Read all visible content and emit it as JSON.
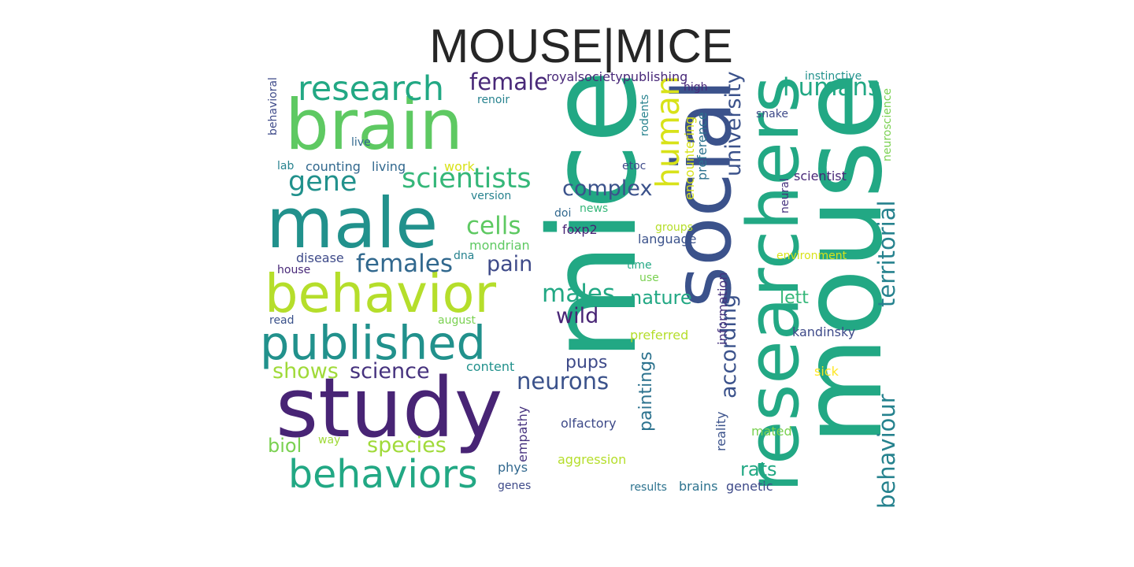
{
  "title": "MOUSE|MICE",
  "words": [
    {
      "text": "mice",
      "color": "#22a884"
    },
    {
      "text": "mouse",
      "color": "#22a884"
    },
    {
      "text": "social",
      "color": "#3b528b"
    },
    {
      "text": "male",
      "color": "#21918c"
    },
    {
      "text": "brain",
      "color": "#5ec962"
    },
    {
      "text": "behavior",
      "color": "#b5de2b"
    },
    {
      "text": "study",
      "color": "#482475"
    },
    {
      "text": "researchers",
      "color": "#22a884"
    },
    {
      "text": "published",
      "color": "#21918c"
    },
    {
      "text": "behaviors",
      "color": "#22a884"
    },
    {
      "text": "research",
      "color": "#22a884"
    },
    {
      "text": "human",
      "color": "#d8e219"
    },
    {
      "text": "humans",
      "color": "#22a884"
    },
    {
      "text": "university",
      "color": "#3b528b"
    },
    {
      "text": "behaviour",
      "color": "#26828e"
    },
    {
      "text": "territorial",
      "color": "#26828e"
    },
    {
      "text": "according",
      "color": "#3b528b"
    },
    {
      "text": "paintings",
      "color": "#2c728e"
    },
    {
      "text": "scientists",
      "color": "#35b779"
    },
    {
      "text": "female",
      "color": "#482878"
    },
    {
      "text": "gene",
      "color": "#21918c"
    },
    {
      "text": "cells",
      "color": "#5ec962"
    },
    {
      "text": "complex",
      "color": "#3b528b"
    },
    {
      "text": "females",
      "color": "#31688e"
    },
    {
      "text": "pain",
      "color": "#3e4a89"
    },
    {
      "text": "males",
      "color": "#22a884"
    },
    {
      "text": "nature",
      "color": "#22a884"
    },
    {
      "text": "wild",
      "color": "#482475"
    },
    {
      "text": "shows",
      "color": "#a0da39"
    },
    {
      "text": "science",
      "color": "#46327e"
    },
    {
      "text": "neurons",
      "color": "#3b528b"
    },
    {
      "text": "pups",
      "color": "#3e4a89"
    },
    {
      "text": "species",
      "color": "#a0da39"
    },
    {
      "text": "biol",
      "color": "#7ad151"
    },
    {
      "text": "rats",
      "color": "#22a884"
    },
    {
      "text": "lett",
      "color": "#35b779"
    },
    {
      "text": "information",
      "color": "#46327e"
    },
    {
      "text": "royalsocietypublishing",
      "color": "#482878"
    },
    {
      "text": "instinctive",
      "color": "#21918c"
    },
    {
      "text": "behavioral",
      "color": "#3e4a89"
    },
    {
      "text": "live",
      "color": "#31688e"
    },
    {
      "text": "lab",
      "color": "#26828e"
    },
    {
      "text": "counting",
      "color": "#31688e"
    },
    {
      "text": "living",
      "color": "#31688e"
    },
    {
      "text": "work",
      "color": "#d8e219"
    },
    {
      "text": "renoir",
      "color": "#26828e"
    },
    {
      "text": "high",
      "color": "#482878"
    },
    {
      "text": "rodents",
      "color": "#26828e"
    },
    {
      "text": "encountering",
      "color": "#d8e219"
    },
    {
      "text": "preference",
      "color": "#2c728e"
    },
    {
      "text": "snake",
      "color": "#3e4a89"
    },
    {
      "text": "neuroscience",
      "color": "#7ad151"
    },
    {
      "text": "etoc",
      "color": "#3e4a89"
    },
    {
      "text": "scientist",
      "color": "#482878"
    },
    {
      "text": "version",
      "color": "#26828e"
    },
    {
      "text": "doi",
      "color": "#31688e"
    },
    {
      "text": "news",
      "color": "#35b779"
    },
    {
      "text": "foxp2",
      "color": "#482475"
    },
    {
      "text": "groups",
      "color": "#b5de2b"
    },
    {
      "text": "language",
      "color": "#3b528b"
    },
    {
      "text": "neural",
      "color": "#46327e"
    },
    {
      "text": "mondrian",
      "color": "#5ec962"
    },
    {
      "text": "disease",
      "color": "#3e4a89"
    },
    {
      "text": "dna",
      "color": "#26828e"
    },
    {
      "text": "house",
      "color": "#482878"
    },
    {
      "text": "environment",
      "color": "#d8e219"
    },
    {
      "text": "time",
      "color": "#22a884"
    },
    {
      "text": "use",
      "color": "#7ad151"
    },
    {
      "text": "read",
      "color": "#3b528b"
    },
    {
      "text": "august",
      "color": "#7ad151"
    },
    {
      "text": "preferred",
      "color": "#b5de2b"
    },
    {
      "text": "kandinsky",
      "color": "#3e4a89"
    },
    {
      "text": "content",
      "color": "#21918c"
    },
    {
      "text": "sick",
      "color": "#fde725"
    },
    {
      "text": "empathy",
      "color": "#46327e"
    },
    {
      "text": "olfactory",
      "color": "#3e4a89"
    },
    {
      "text": "reality",
      "color": "#3b528b"
    },
    {
      "text": "mated",
      "color": "#7ad151"
    },
    {
      "text": "way",
      "color": "#a0da39"
    },
    {
      "text": "aggression",
      "color": "#b5de2b"
    },
    {
      "text": "phys",
      "color": "#31688e"
    },
    {
      "text": "genes",
      "color": "#3e4a89"
    },
    {
      "text": "results",
      "color": "#2c728e"
    },
    {
      "text": "brains",
      "color": "#2c728e"
    },
    {
      "text": "genetic",
      "color": "#3e4a89"
    }
  ]
}
